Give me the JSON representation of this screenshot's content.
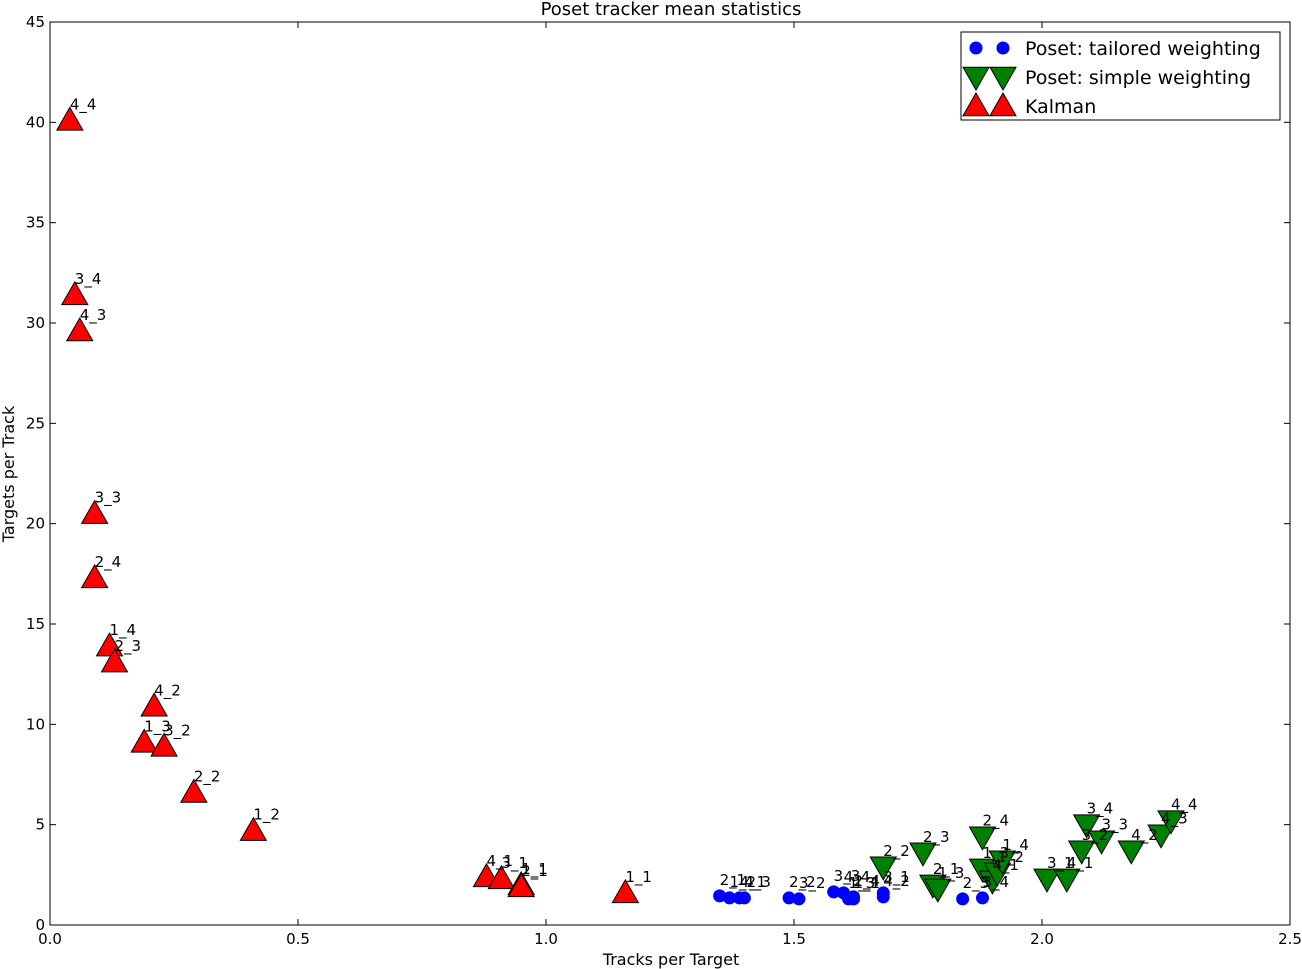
{
  "chart_data": {
    "type": "scatter",
    "title": "Poset tracker mean statistics",
    "xlabel": "Tracks per Target",
    "ylabel": "Targets per Track",
    "xlim": [
      0.0,
      2.5
    ],
    "ylim": [
      0,
      45
    ],
    "xticks": [
      "0.0",
      "0.5",
      "1.0",
      "1.5",
      "2.0",
      "2.5"
    ],
    "xtick_values": [
      0.0,
      0.5,
      1.0,
      1.5,
      2.0,
      2.5
    ],
    "yticks": [
      "0",
      "5",
      "10",
      "15",
      "20",
      "25",
      "30",
      "35",
      "40",
      "45"
    ],
    "ytick_values": [
      0,
      5,
      10,
      15,
      20,
      25,
      30,
      35,
      40,
      45
    ],
    "grid": false,
    "legend_position": "top-right",
    "series": [
      {
        "name": "Poset: tailored weighting",
        "marker": "circle",
        "color": "#0000ff",
        "points": [
          {
            "label": "2_1",
            "x": 1.35,
            "y": 1.45
          },
          {
            "label": "1_2",
            "x": 1.37,
            "y": 1.35
          },
          {
            "label": "4_1",
            "x": 1.39,
            "y": 1.35
          },
          {
            "label": "4_3",
            "x": 1.4,
            "y": 1.35
          },
          {
            "label": "2_2",
            "x": 1.49,
            "y": 1.35
          },
          {
            "label": "3_2",
            "x": 1.51,
            "y": 1.3
          },
          {
            "label": "3_3",
            "x": 1.58,
            "y": 1.65
          },
          {
            "label": "4_4",
            "x": 1.6,
            "y": 1.6
          },
          {
            "label": "1_3",
            "x": 1.61,
            "y": 1.3
          },
          {
            "label": "2_4",
            "x": 1.62,
            "y": 1.4
          },
          {
            "label": "1_1",
            "x": 1.62,
            "y": 1.3
          },
          {
            "label": "4_2",
            "x": 1.68,
            "y": 1.4
          },
          {
            "label": "3_1",
            "x": 1.68,
            "y": 1.6
          },
          {
            "label": "2_3",
            "x": 1.84,
            "y": 1.3
          },
          {
            "label": "3_4",
            "x": 1.88,
            "y": 1.35
          }
        ]
      },
      {
        "name": "Poset: simple weighting",
        "marker": "triangle-down",
        "color": "#008000",
        "points": [
          {
            "label": "2_2",
            "x": 1.68,
            "y": 2.9
          },
          {
            "label": "2_3",
            "x": 1.76,
            "y": 3.6
          },
          {
            "label": "2_1",
            "x": 1.78,
            "y": 2.0
          },
          {
            "label": "1_3",
            "x": 1.79,
            "y": 1.8
          },
          {
            "label": "2_4",
            "x": 1.88,
            "y": 4.4
          },
          {
            "label": "1_3",
            "x": 1.88,
            "y": 2.8
          },
          {
            "label": "4_1",
            "x": 1.9,
            "y": 2.2
          },
          {
            "label": "1_2",
            "x": 1.91,
            "y": 2.6
          },
          {
            "label": "1_4",
            "x": 1.92,
            "y": 3.2
          },
          {
            "label": "3_1",
            "x": 2.01,
            "y": 2.3
          },
          {
            "label": "4_1",
            "x": 2.05,
            "y": 2.3
          },
          {
            "label": "3_2",
            "x": 2.08,
            "y": 3.7
          },
          {
            "label": "3_4",
            "x": 2.09,
            "y": 5.0
          },
          {
            "label": "3_3",
            "x": 2.12,
            "y": 4.2
          },
          {
            "label": "4_2",
            "x": 2.18,
            "y": 3.7
          },
          {
            "label": "4_3",
            "x": 2.24,
            "y": 4.5
          },
          {
            "label": "4_4",
            "x": 2.26,
            "y": 5.2
          }
        ]
      },
      {
        "name": "Kalman",
        "marker": "triangle-up",
        "color": "#ff0000",
        "points": [
          {
            "label": "4_4",
            "x": 0.04,
            "y": 40.1
          },
          {
            "label": "3_4",
            "x": 0.05,
            "y": 31.4
          },
          {
            "label": "4_3",
            "x": 0.06,
            "y": 29.6
          },
          {
            "label": "3_3",
            "x": 0.09,
            "y": 20.5
          },
          {
            "label": "2_4",
            "x": 0.09,
            "y": 17.3
          },
          {
            "label": "1_4",
            "x": 0.12,
            "y": 13.9
          },
          {
            "label": "2_3",
            "x": 0.13,
            "y": 13.1
          },
          {
            "label": "4_2",
            "x": 0.21,
            "y": 10.9
          },
          {
            "label": "1_3",
            "x": 0.19,
            "y": 9.1
          },
          {
            "label": "3_2",
            "x": 0.23,
            "y": 8.9
          },
          {
            "label": "2_2",
            "x": 0.29,
            "y": 6.6
          },
          {
            "label": "1_2",
            "x": 0.41,
            "y": 4.7
          },
          {
            "label": "4_1",
            "x": 0.88,
            "y": 2.4
          },
          {
            "label": "3_1",
            "x": 0.91,
            "y": 2.3
          },
          {
            "label": "1_1",
            "x": 0.95,
            "y": 2.0
          },
          {
            "label": "2_1",
            "x": 0.95,
            "y": 1.9
          },
          {
            "label": "1_1",
            "x": 1.16,
            "y": 1.6
          }
        ]
      }
    ]
  }
}
